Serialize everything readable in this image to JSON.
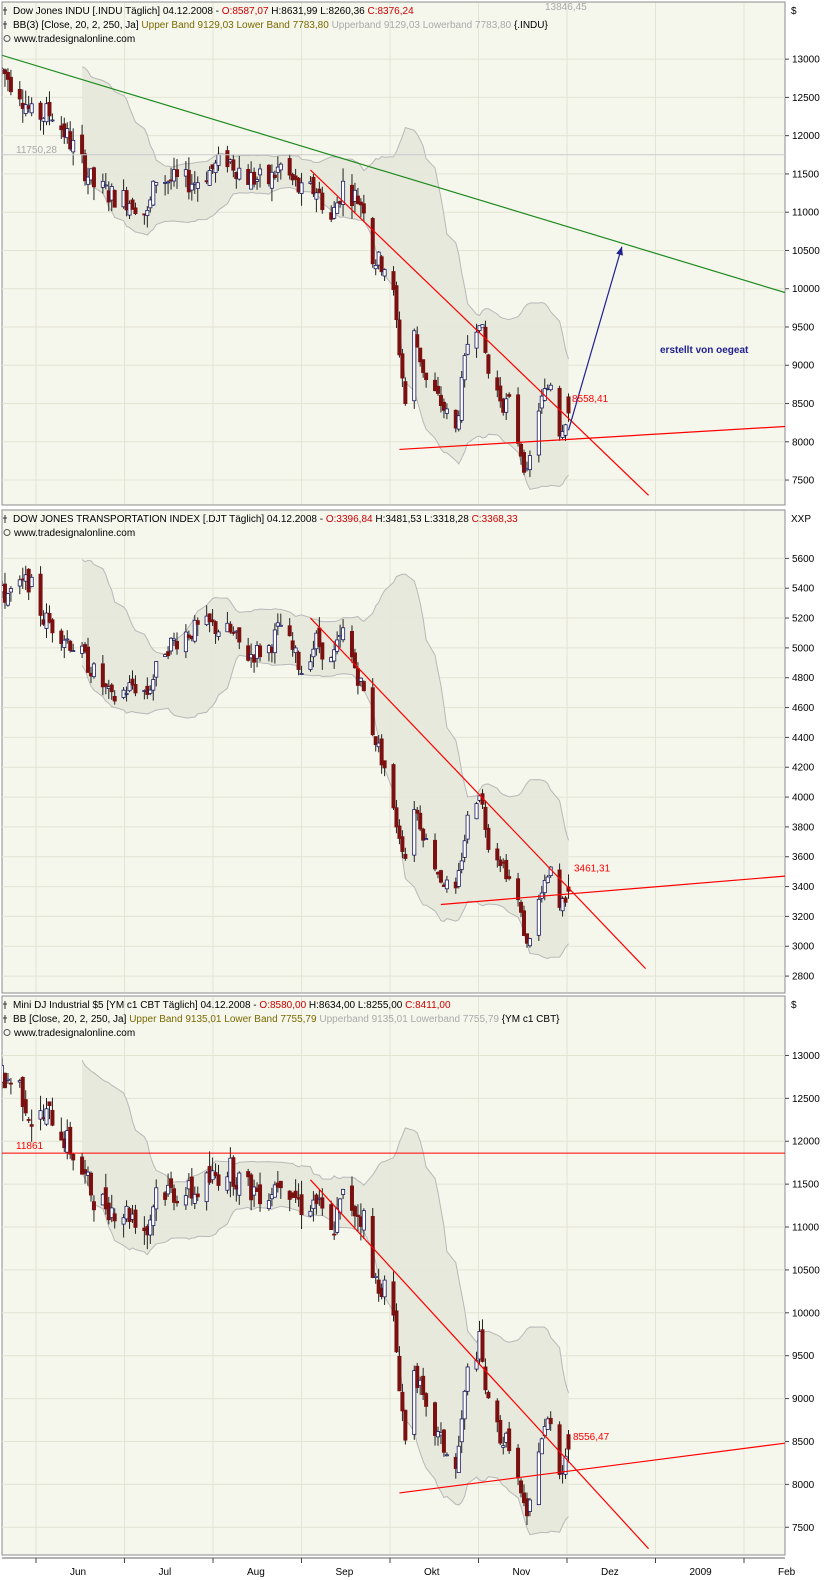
{
  "page": {
    "watermark": "www.tradesignalonline.com",
    "x_months": [
      "Jun",
      "Jul",
      "Aug",
      "Sep",
      "Okt",
      "Nov",
      "Dez",
      "2009",
      "Feb"
    ]
  },
  "colors": {
    "panel_bg": "#f5f6ec",
    "grid": "#e2e4d4",
    "band_fill": "#e6e8da",
    "band_line": "#b8b8b8",
    "up_body": "#1a1a66",
    "down_body": "#7a1010",
    "trend_red": "#ff0000",
    "trend_green": "#1e8b1e",
    "arrow_blue": "#202090",
    "ohlc_red": "#cc0000",
    "upper_band_text": "#7a6a00",
    "grey_text": "#aaaaaa"
  },
  "panels": [
    {
      "id": "indu",
      "header": {
        "line1": [
          {
            "text": "Dow Jones INDU [.INDU  Täglich] 04.12.2008 - ",
            "color": "#000000"
          },
          {
            "text": "O:8587,07",
            "color": "#cc0000"
          },
          {
            "text": " H:8631,99 L:8260,36 ",
            "color": "#000000"
          },
          {
            "text": "C:8376,24",
            "color": "#cc0000"
          }
        ],
        "line2": [
          {
            "text": "BB(3) [Close, 20, 2, 250, Ja] ",
            "color": "#000000"
          },
          {
            "text": "Upper Band 9129,03 Lower Band 7783,80 ",
            "color": "#7a6a00"
          },
          {
            "text": "Upperband 9129,03 Lowerband 7783,80 ",
            "color": "#aaaaaa"
          },
          {
            "text": "{.INDU}",
            "color": "#000000"
          }
        ]
      },
      "axis_unit": "$",
      "y_ticks": [
        7500,
        8000,
        8500,
        9000,
        9500,
        10000,
        10500,
        11000,
        11500,
        12000,
        12500,
        13000
      ],
      "labels": [
        {
          "text": "11750,28",
          "color": "#aaaaaa"
        },
        {
          "text": "13846,45",
          "color": "#aaaaaa"
        },
        {
          "text": "8558,41",
          "color": "#ff0000"
        },
        {
          "text": "erstellt von oegeat",
          "color": "#202090"
        }
      ]
    },
    {
      "id": "djt",
      "header": {
        "line1": [
          {
            "text": "DOW JONES TRANSPORTATION INDEX [.DJT  Täglich] 04.12.2008 - ",
            "color": "#000000"
          },
          {
            "text": "O:3396,84",
            "color": "#cc0000"
          },
          {
            "text": " H:3481,53 L:3318,28 ",
            "color": "#000000"
          },
          {
            "text": "C:3368,33",
            "color": "#cc0000"
          }
        ]
      },
      "axis_unit": "XXP",
      "y_ticks": [
        2800,
        3000,
        3200,
        3400,
        3600,
        3800,
        4000,
        4200,
        4400,
        4600,
        4800,
        5000,
        5200,
        5400,
        5600
      ],
      "labels": [
        {
          "text": "3461,31",
          "color": "#ff0000"
        }
      ]
    },
    {
      "id": "ym",
      "header": {
        "line1": [
          {
            "text": "Mini DJ Industrial $5 [YM c1 CBT  Täglich] 04.12.2008 - ",
            "color": "#000000"
          },
          {
            "text": "O:8580,00",
            "color": "#cc0000"
          },
          {
            "text": " H:8634,00 L:8255,00 ",
            "color": "#000000"
          },
          {
            "text": "C:8411,00",
            "color": "#cc0000"
          }
        ],
        "line2": [
          {
            "text": "BB [Close, 20, 2, 250, Ja] ",
            "color": "#000000"
          },
          {
            "text": "Upper Band 9135,01 Lower Band 7755,79 ",
            "color": "#7a6a00"
          },
          {
            "text": "Upperband 9135,01 Lowerband 7755,79 ",
            "color": "#aaaaaa"
          },
          {
            "text": "{YM c1 CBT}",
            "color": "#000000"
          }
        ]
      },
      "axis_unit": "$",
      "y_ticks": [
        7500,
        8000,
        8500,
        9000,
        9500,
        10000,
        10500,
        11000,
        11500,
        12000,
        12500,
        13000
      ],
      "labels": [
        {
          "text": "11861",
          "color": "#ff0000"
        },
        {
          "text": "8556,47",
          "color": "#ff0000"
        }
      ]
    }
  ],
  "chart_data": [
    {
      "type": "candlestick",
      "title": "Dow Jones INDU [.INDU  Täglich] 04.12.2008",
      "y_unit": "$",
      "ylim": [
        7200,
        13250
      ],
      "anchors": [
        [
          "2008-05-27",
          12850
        ],
        [
          "2008-06-02",
          12600
        ],
        [
          "2008-06-06",
          12250
        ],
        [
          "2008-06-13",
          12300
        ],
        [
          "2008-06-20",
          11850
        ],
        [
          "2008-06-27",
          11350
        ],
        [
          "2008-07-03",
          11220
        ],
        [
          "2008-07-10",
          11150
        ],
        [
          "2008-07-15",
          10950
        ],
        [
          "2008-07-18",
          11450
        ],
        [
          "2008-07-25",
          11400
        ],
        [
          "2008-07-31",
          11400
        ],
        [
          "2008-08-11",
          11700
        ],
        [
          "2008-08-18",
          11450
        ],
        [
          "2008-08-25",
          11400
        ],
        [
          "2008-08-29",
          11600
        ],
        [
          "2008-09-05",
          11250
        ],
        [
          "2008-09-10",
          11300
        ],
        [
          "2008-09-15",
          10900
        ],
        [
          "2008-09-19",
          11350
        ],
        [
          "2008-09-26",
          11100
        ],
        [
          "2008-09-29",
          10400
        ],
        [
          "2008-10-03",
          10300
        ],
        [
          "2008-10-06",
          9900
        ],
        [
          "2008-10-10",
          8500
        ],
        [
          "2008-10-13",
          9400
        ],
        [
          "2008-10-17",
          8800
        ],
        [
          "2008-10-22",
          8500
        ],
        [
          "2008-10-27",
          8150
        ],
        [
          "2008-10-31",
          9300
        ],
        [
          "2008-11-04",
          9650
        ],
        [
          "2008-11-07",
          8900
        ],
        [
          "2008-11-12",
          8500
        ],
        [
          "2008-11-14",
          8500
        ],
        [
          "2008-11-20",
          7550
        ],
        [
          "2008-11-24",
          8450
        ],
        [
          "2008-11-28",
          8800
        ],
        [
          "2008-12-01",
          8150
        ],
        [
          "2008-12-04",
          8376
        ]
      ],
      "last": {
        "date": "2008-12-04",
        "open": 8587.07,
        "high": 8631.99,
        "low": 8260.36,
        "close": 8376.24
      },
      "bollinger": {
        "upper": 9129.03,
        "lower": 7783.8
      },
      "lines": [
        {
          "kind": "trend",
          "color": "green",
          "from": [
            "2008-05-27",
            13050
          ],
          "to": [
            "2009-02-15",
            9950
          ]
        },
        {
          "kind": "trend",
          "color": "red",
          "from": [
            "2008-09-08",
            11550
          ],
          "to": [
            "2008-12-31",
            7300
          ]
        },
        {
          "kind": "trend",
          "color": "red",
          "from": [
            "2008-10-08",
            7900
          ],
          "to": [
            "2009-02-15",
            8200
          ]
        },
        {
          "kind": "arrow",
          "color": "blue",
          "from": [
            "2008-12-04",
            8150
          ],
          "to": [
            "2008-12-22",
            10550
          ]
        }
      ],
      "horizontal": [
        11750.28
      ]
    },
    {
      "type": "candlestick",
      "title": "DOW JONES TRANSPORTATION INDEX [.DJT  Täglich] 04.12.2008",
      "y_unit": "XXP",
      "ylim": [
        2700,
        5750
      ],
      "anchors": [
        [
          "2008-05-27",
          5350
        ],
        [
          "2008-06-02",
          5400
        ],
        [
          "2008-06-05",
          5450
        ],
        [
          "2008-06-10",
          5200
        ],
        [
          "2008-06-16",
          5100
        ],
        [
          "2008-06-23",
          4950
        ],
        [
          "2008-06-30",
          4750
        ],
        [
          "2008-07-03",
          4650
        ],
        [
          "2008-07-10",
          4750
        ],
        [
          "2008-07-15",
          4700
        ],
        [
          "2008-07-21",
          5000
        ],
        [
          "2008-07-28",
          5100
        ],
        [
          "2008-08-05",
          5150
        ],
        [
          "2008-08-12",
          5100
        ],
        [
          "2008-08-18",
          4950
        ],
        [
          "2008-08-25",
          5000
        ],
        [
          "2008-08-29",
          5150
        ],
        [
          "2008-09-05",
          4850
        ],
        [
          "2008-09-10",
          5050
        ],
        [
          "2008-09-15",
          4900
        ],
        [
          "2008-09-19",
          5100
        ],
        [
          "2008-09-26",
          4700
        ],
        [
          "2008-09-29",
          4450
        ],
        [
          "2008-10-03",
          4200
        ],
        [
          "2008-10-06",
          3900
        ],
        [
          "2008-10-10",
          3600
        ],
        [
          "2008-10-13",
          3950
        ],
        [
          "2008-10-17",
          3700
        ],
        [
          "2008-10-22",
          3450
        ],
        [
          "2008-10-27",
          3350
        ],
        [
          "2008-10-31",
          3850
        ],
        [
          "2008-11-04",
          4050
        ],
        [
          "2008-11-07",
          3700
        ],
        [
          "2008-11-12",
          3550
        ],
        [
          "2008-11-17",
          3300
        ],
        [
          "2008-11-20",
          3000
        ],
        [
          "2008-11-24",
          3300
        ],
        [
          "2008-11-28",
          3500
        ],
        [
          "2008-12-01",
          3250
        ],
        [
          "2008-12-04",
          3368
        ]
      ],
      "last": {
        "date": "2008-12-04",
        "open": 3396.84,
        "high": 3481.53,
        "low": 3318.28,
        "close": 3368.33
      },
      "lines": [
        {
          "kind": "trend",
          "color": "red",
          "from": [
            "2008-09-08",
            5200
          ],
          "to": [
            "2008-12-30",
            2850
          ]
        },
        {
          "kind": "trend",
          "color": "red",
          "from": [
            "2008-10-22",
            3280
          ],
          "to": [
            "2009-02-15",
            3470
          ]
        }
      ],
      "horizontal": []
    },
    {
      "type": "candlestick",
      "title": "Mini DJ Industrial $5 [YM c1 CBT  Täglich] 04.12.2008",
      "y_unit": "$",
      "ylim": [
        7200,
        13250
      ],
      "anchors": [
        [
          "2008-05-27",
          12750
        ],
        [
          "2008-06-02",
          12650
        ],
        [
          "2008-06-06",
          12250
        ],
        [
          "2008-06-13",
          12300
        ],
        [
          "2008-06-20",
          11850
        ],
        [
          "2008-06-27",
          11350
        ],
        [
          "2008-07-03",
          11220
        ],
        [
          "2008-07-10",
          11150
        ],
        [
          "2008-07-15",
          10950
        ],
        [
          "2008-07-18",
          11450
        ],
        [
          "2008-07-25",
          11400
        ],
        [
          "2008-07-31",
          11400
        ],
        [
          "2008-08-11",
          11700
        ],
        [
          "2008-08-18",
          11450
        ],
        [
          "2008-08-25",
          11400
        ],
        [
          "2008-08-29",
          11600
        ],
        [
          "2008-09-05",
          11250
        ],
        [
          "2008-09-10",
          11300
        ],
        [
          "2008-09-15",
          10900
        ],
        [
          "2008-09-19",
          11350
        ],
        [
          "2008-09-26",
          11100
        ],
        [
          "2008-09-29",
          10400
        ],
        [
          "2008-10-03",
          10300
        ],
        [
          "2008-10-06",
          9900
        ],
        [
          "2008-10-10",
          8500
        ],
        [
          "2008-10-13",
          9400
        ],
        [
          "2008-10-17",
          8800
        ],
        [
          "2008-10-22",
          8500
        ],
        [
          "2008-10-27",
          8150
        ],
        [
          "2008-10-31",
          9300
        ],
        [
          "2008-11-04",
          9650
        ],
        [
          "2008-11-07",
          8900
        ],
        [
          "2008-11-12",
          8500
        ],
        [
          "2008-11-14",
          8500
        ],
        [
          "2008-11-20",
          7550
        ],
        [
          "2008-11-24",
          8450
        ],
        [
          "2008-11-28",
          8800
        ],
        [
          "2008-12-01",
          8150
        ],
        [
          "2008-12-04",
          8411
        ]
      ],
      "last": {
        "date": "2008-12-04",
        "open": 8580.0,
        "high": 8634.0,
        "low": 8255.0,
        "close": 8411.0
      },
      "bollinger": {
        "upper": 9135.01,
        "lower": 7755.79
      },
      "lines": [
        {
          "kind": "trend",
          "color": "red",
          "from": [
            "2008-09-08",
            11550
          ],
          "to": [
            "2008-12-31",
            7250
          ]
        },
        {
          "kind": "trend",
          "color": "red",
          "from": [
            "2008-10-08",
            7900
          ],
          "to": [
            "2009-02-15",
            8480
          ]
        }
      ],
      "horizontal": [
        11861
      ]
    }
  ]
}
